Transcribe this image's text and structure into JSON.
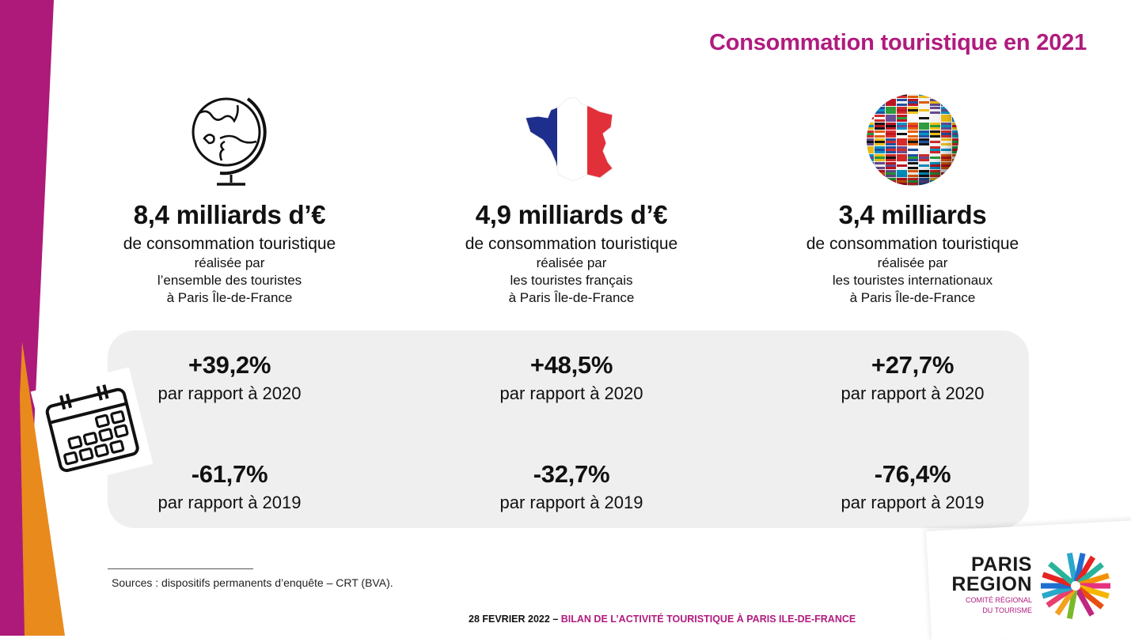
{
  "page": {
    "title": "Consommation touristique en 2021"
  },
  "columns": [
    {
      "icon": "globe-icon",
      "amount": "8,4 milliards d’€",
      "line1": "de consommation touristique",
      "line2": "réalisée par",
      "line3": "l’ensemble des touristes",
      "line4": "à Paris Île-de-France"
    },
    {
      "icon": "france-flag-map-icon",
      "amount": "4,9 milliards d’€",
      "line1": "de consommation touristique",
      "line2": "réalisée par",
      "line3": "les touristes français",
      "line4": "à Paris Île-de-France"
    },
    {
      "icon": "flags-globe-icon",
      "amount": "3,4 milliards",
      "line1": "de consommation touristique",
      "line2": "réalisée par",
      "line3": "les touristes internationaux",
      "line4": "à Paris Île-de-France"
    }
  ],
  "comparisons": [
    {
      "vs2020": "+39,2%",
      "vs2020_label": "par rapport à 2020",
      "vs2019": "-61,7%",
      "vs2019_label": "par rapport à 2019"
    },
    {
      "vs2020": "+48,5%",
      "vs2020_label": "par rapport à 2020",
      "vs2019": "-32,7%",
      "vs2019_label": "par rapport à 2019"
    },
    {
      "vs2020": "+27,7%",
      "vs2020_label": "par rapport à 2020",
      "vs2019": "-76,4%",
      "vs2019_label": "par rapport à 2019"
    }
  ],
  "sources": "Sources : dispositifs permanents d’enquête – CRT (BVA).",
  "footer": {
    "date": "28 FEVRIER 2022",
    "separator": " – ",
    "label": "BILAN DE L’ACTIVITÉ TOURISTIQUE À PARIS ILE-DE-FRANCE"
  },
  "logo": {
    "line1": "PARIS",
    "line2": "REGION",
    "line3": "COMITÉ RÉGIONAL",
    "line4": "DU TOURISME"
  },
  "colors": {
    "accent": "#b01b7e",
    "orange": "#e98a1d",
    "panel": "#efefef"
  }
}
